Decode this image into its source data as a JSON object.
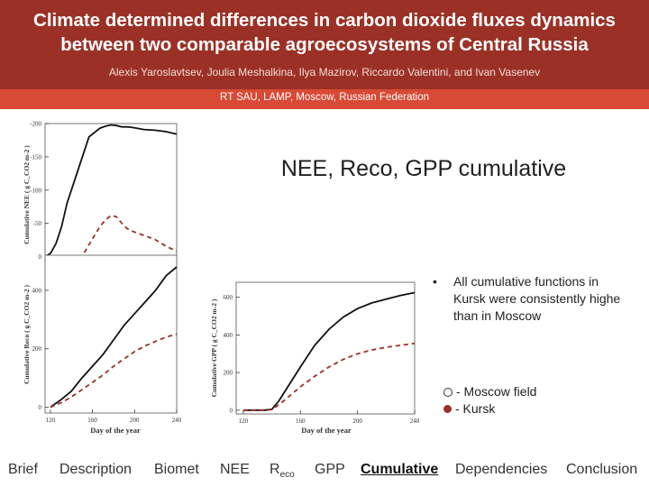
{
  "header": {
    "title_line1": "Climate determined differences in carbon dioxide fluxes dynamics",
    "title_line2": "between two comparable agroecosystems of Central Russia",
    "authors": "Alexis Yaroslavtsev, Joulia Meshalkina, Ilya Mazirov, Riccardo Valentini, and Ivan Vasenev",
    "affiliation": "RT SAU, LAMP, Moscow, Russian Federation"
  },
  "slide": {
    "section_title": "NEE, Reco, GPP cumulative",
    "bullet_mark": "•",
    "bullet_line1": "All cumulative functions in",
    "bullet_line2": "Kursk were consistently highe",
    "bullet_line3": "than in Moscow",
    "legend_moscow": "- Moscow field",
    "legend_kursk": "- Kursk"
  },
  "colors": {
    "header_bg": "#9b3126",
    "affil_bg": "#d84a35",
    "dashed_series": "#9b3126",
    "solid_series": "#111111"
  },
  "chart_data": [
    {
      "type": "line",
      "ylabel": "Cumulative NEE ( g C_CO2 m-2 )",
      "yticks": [
        "0",
        "-50",
        "-100",
        "-150",
        "-200"
      ],
      "series": [
        {
          "style": "solid",
          "x": [
            120,
            125,
            130,
            135,
            140,
            150,
            160,
            170,
            175,
            180,
            185,
            190,
            195,
            200,
            210,
            220,
            230,
            240
          ],
          "y": [
            0,
            -5,
            -20,
            -45,
            -80,
            -130,
            -180,
            -193,
            -196,
            -198,
            -197,
            -195,
            -195,
            -194,
            -191,
            -190,
            -188,
            -184
          ]
        },
        {
          "style": "dashed",
          "x": [
            120,
            125,
            130,
            135,
            140,
            150,
            160,
            170,
            175,
            180,
            185,
            190,
            195,
            200,
            210,
            220,
            230,
            240
          ],
          "y": [
            0,
            5,
            10,
            14,
            16,
            10,
            -18,
            -45,
            -55,
            -62,
            -60,
            -50,
            -42,
            -38,
            -32,
            -26,
            -16,
            -8
          ]
        }
      ]
    },
    {
      "type": "line",
      "xlabel": "Day of the year",
      "ylabel": "Cumulative Reco ( g C_CO2 m-2 )",
      "xticks": [
        "120",
        "160",
        "200",
        "240"
      ],
      "yticks": [
        "0",
        "200",
        "400"
      ],
      "series": [
        {
          "style": "solid",
          "x": [
            120,
            130,
            140,
            150,
            160,
            170,
            180,
            190,
            200,
            210,
            220,
            230,
            240
          ],
          "y": [
            0,
            25,
            55,
            100,
            140,
            180,
            230,
            280,
            320,
            360,
            400,
            450,
            480
          ]
        },
        {
          "style": "dashed",
          "x": [
            120,
            130,
            140,
            150,
            160,
            170,
            180,
            190,
            200,
            210,
            220,
            230,
            240
          ],
          "y": [
            0,
            15,
            35,
            60,
            85,
            110,
            140,
            165,
            190,
            210,
            225,
            240,
            250
          ]
        }
      ]
    },
    {
      "type": "line",
      "xlabel": "Day of the year",
      "ylabel": "Cumulative GPP ( g C_CO2 m-2 )",
      "xticks": [
        "120",
        "160",
        "200",
        "240"
      ],
      "yticks": [
        "0",
        "200",
        "400",
        "600"
      ],
      "series": [
        {
          "style": "solid",
          "x": [
            120,
            125,
            130,
            135,
            140,
            145,
            150,
            160,
            170,
            180,
            190,
            200,
            210,
            220,
            230,
            240
          ],
          "y": [
            0,
            0,
            0,
            0,
            5,
            50,
            110,
            230,
            345,
            430,
            495,
            540,
            570,
            590,
            610,
            625
          ]
        },
        {
          "style": "dashed",
          "x": [
            120,
            125,
            130,
            135,
            140,
            145,
            150,
            160,
            170,
            180,
            190,
            200,
            210,
            220,
            230,
            240
          ],
          "y": [
            0,
            0,
            0,
            0,
            3,
            30,
            60,
            125,
            180,
            230,
            270,
            300,
            320,
            335,
            345,
            355
          ]
        }
      ]
    }
  ],
  "nav": {
    "items": [
      {
        "label": "Brief"
      },
      {
        "label": "Description"
      },
      {
        "label": "Biomet"
      },
      {
        "label": "NEE"
      },
      {
        "label": "R",
        "sub": "eco"
      },
      {
        "label": "GPP"
      },
      {
        "label": "Cumulative"
      },
      {
        "label": "Dependencies"
      },
      {
        "label": "Conclusion"
      }
    ]
  }
}
